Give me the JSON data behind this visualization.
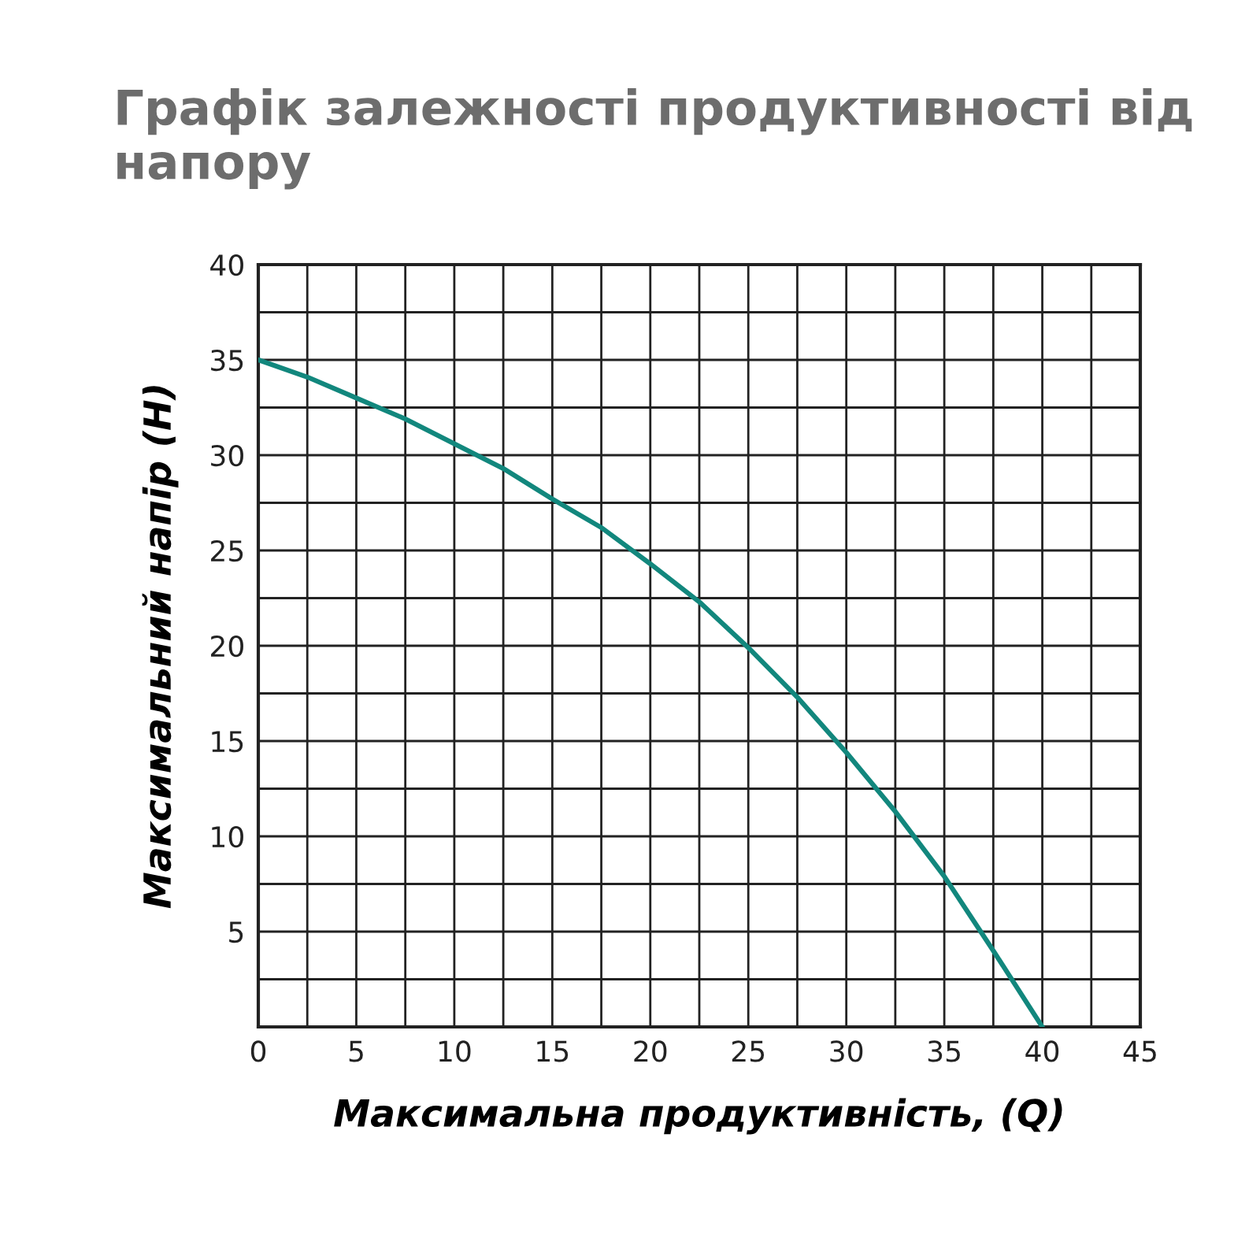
{
  "chart_data": {
    "type": "line",
    "title": "Графік залежності продуктивності від напору",
    "xlabel": "Максимальна продуктивність, (Q)",
    "ylabel": "Максимальний напір (H)",
    "series": [
      {
        "color": "#12877d",
        "x": [
          0,
          2.5,
          5,
          7.5,
          10,
          12.5,
          15,
          17.5,
          20,
          22.5,
          25,
          27.5,
          30,
          32.5,
          35,
          37.5,
          40
        ],
        "values": [
          35,
          34.1,
          33,
          31.9,
          30.6,
          29.3,
          27.7,
          26.2,
          24.3,
          22.3,
          19.9,
          17.3,
          14.4,
          11.3,
          7.9,
          4.0,
          0
        ]
      }
    ],
    "xlim": [
      0,
      45
    ],
    "ylim": [
      0,
      40
    ],
    "xticks": [
      0,
      {
        "value": 2.5,
        "label": null
      },
      5,
      {
        "value": 7.5,
        "label": null
      },
      10,
      {
        "value": 12.5,
        "label": null
      },
      15,
      {
        "value": 17.5,
        "label": null
      },
      20,
      {
        "value": 22.5,
        "label": null
      },
      25,
      {
        "value": 27.5,
        "label": null
      },
      30,
      {
        "value": 32.5,
        "label": null
      },
      35,
      {
        "value": 37.5,
        "label": null
      },
      40,
      {
        "value": 42.5,
        "label": null
      },
      45
    ],
    "yticks": [
      {
        "value": 0,
        "label": null
      },
      {
        "value": 2.5,
        "label": null
      },
      5,
      {
        "value": 7.5,
        "label": null
      },
      10,
      {
        "value": 12.5,
        "label": null
      },
      15,
      {
        "value": 17.5,
        "label": null
      },
      20,
      {
        "value": 22.5,
        "label": null
      },
      25,
      {
        "value": 27.5,
        "label": null
      },
      30,
      {
        "value": 32.5,
        "label": null
      },
      35,
      {
        "value": 37.5,
        "label": null
      },
      40
    ],
    "grid": true,
    "marker": "none",
    "line_style": "solid"
  }
}
